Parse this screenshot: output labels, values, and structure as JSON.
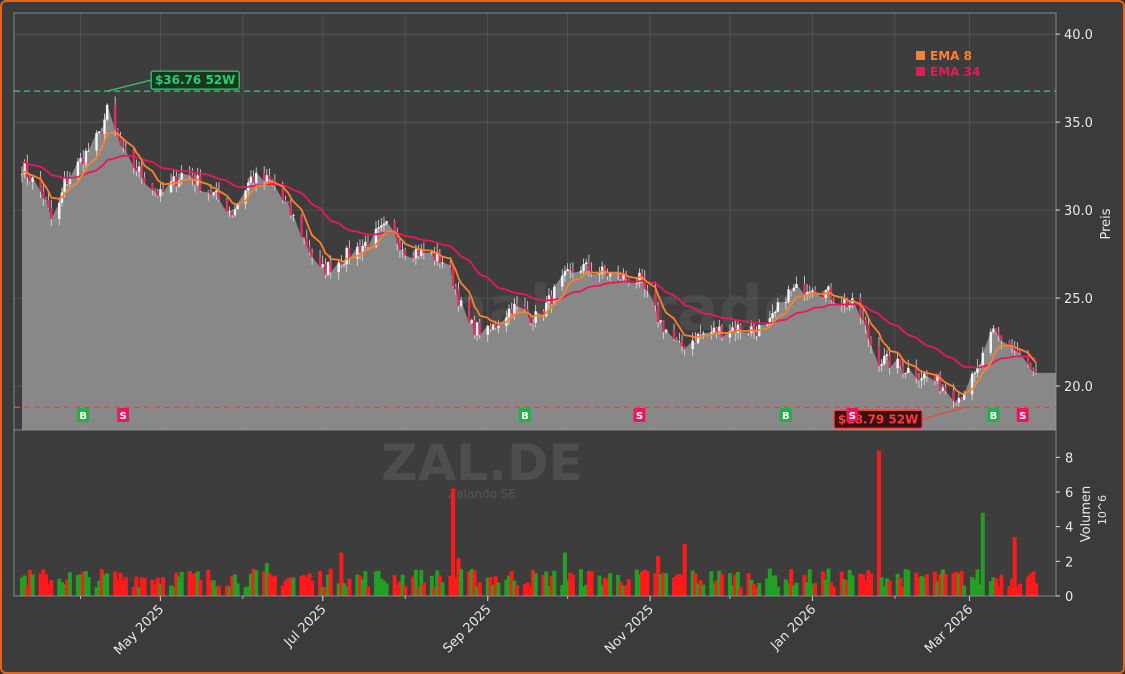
{
  "chart_data": [
    {
      "type": "candlestick",
      "ylabel": "Preis",
      "ylim": [
        17.5,
        41.2
      ],
      "yticks": [
        "20.0",
        "25.0",
        "30.0",
        "35.0",
        "40.0"
      ],
      "xticks": [
        "May 2025",
        "Jul 2025",
        "Sep 2025",
        "Nov 2025",
        "Jan 2026",
        "Mar 2026"
      ],
      "xlim": [
        "2025-03-10",
        "2026-03-26"
      ],
      "legend": [
        "EMA 8",
        "EMA 34"
      ],
      "legend_position": "top-right",
      "grid": true,
      "annotations": [
        {
          "label": "$36.76 52W",
          "value": 36.76,
          "date": "2025-04-11",
          "color": "#2ecc71"
        },
        {
          "label": "$18.79 52W",
          "value": 18.79,
          "date": "2026-02-27",
          "color": "#ff3b3b"
        }
      ],
      "signals": [
        {
          "date": "2025-04-02",
          "label": "B"
        },
        {
          "date": "2025-04-17",
          "label": "S"
        },
        {
          "date": "2025-09-15",
          "label": "B"
        },
        {
          "date": "2025-10-28",
          "label": "S"
        },
        {
          "date": "2025-12-22",
          "label": "B"
        },
        {
          "date": "2026-01-16",
          "label": "S"
        },
        {
          "date": "2026-03-10",
          "label": "B"
        },
        {
          "date": "2026-03-21",
          "label": "S"
        }
      ],
      "close_keypoints": [
        [
          "2025-03-10",
          32.5
        ],
        [
          "2025-03-18",
          30.8
        ],
        [
          "2025-03-22",
          29.0
        ],
        [
          "2025-03-26",
          31.5
        ],
        [
          "2025-04-02",
          33.0
        ],
        [
          "2025-04-08",
          34.2
        ],
        [
          "2025-04-11",
          35.6
        ],
        [
          "2025-04-17",
          33.2
        ],
        [
          "2025-04-24",
          32.0
        ],
        [
          "2025-05-01",
          30.8
        ],
        [
          "2025-05-10",
          32.2
        ],
        [
          "2025-05-20",
          31.0
        ],
        [
          "2025-05-28",
          29.9
        ],
        [
          "2025-06-04",
          31.8
        ],
        [
          "2025-06-12",
          31.6
        ],
        [
          "2025-06-22",
          29.0
        ],
        [
          "2025-06-30",
          26.5
        ],
        [
          "2025-07-08",
          27.2
        ],
        [
          "2025-07-16",
          28.0
        ],
        [
          "2025-07-25",
          29.0
        ],
        [
          "2025-08-01",
          27.8
        ],
        [
          "2025-08-10",
          27.5
        ],
        [
          "2025-08-17",
          27.0
        ],
        [
          "2025-08-24",
          23.5
        ],
        [
          "2025-09-01",
          23.0
        ],
        [
          "2025-09-10",
          24.5
        ],
        [
          "2025-09-20",
          23.8
        ],
        [
          "2025-09-28",
          25.8
        ],
        [
          "2025-10-05",
          26.8
        ],
        [
          "2025-10-15",
          26.4
        ],
        [
          "2025-10-28",
          26.0
        ],
        [
          "2025-11-05",
          23.6
        ],
        [
          "2025-11-12",
          22.2
        ],
        [
          "2025-11-20",
          22.9
        ],
        [
          "2025-12-01",
          23.3
        ],
        [
          "2025-12-15",
          23.2
        ],
        [
          "2025-12-22",
          25.2
        ],
        [
          "2026-01-01",
          25.8
        ],
        [
          "2026-01-10",
          25.0
        ],
        [
          "2026-01-18",
          24.4
        ],
        [
          "2026-01-25",
          21.6
        ],
        [
          "2026-02-05",
          21.0
        ],
        [
          "2026-02-15",
          20.4
        ],
        [
          "2026-02-25",
          19.4
        ],
        [
          "2026-03-03",
          20.5
        ],
        [
          "2026-03-10",
          23.0
        ],
        [
          "2026-03-16",
          22.4
        ],
        [
          "2026-03-22",
          21.3
        ],
        [
          "2026-03-26",
          20.4
        ]
      ]
    },
    {
      "type": "bar",
      "ylabel": "Volumen",
      "yunit": "10^6",
      "yticks": [
        "0",
        "2",
        "4",
        "6",
        "8"
      ],
      "ylim": [
        0,
        9
      ],
      "title": "ZAL.DE",
      "subtitle": "Zalando SE",
      "watermark": "forexsignale.trade",
      "peaks": [
        {
          "date": "2025-04-20",
          "value": 2.5
        },
        {
          "date": "2025-06-10",
          "value": 1.9
        },
        {
          "date": "2025-07-08",
          "value": 2.5
        },
        {
          "date": "2025-08-19",
          "value": 6.2
        },
        {
          "date": "2025-08-21",
          "value": 2.2
        },
        {
          "date": "2025-09-30",
          "value": 2.5
        },
        {
          "date": "2025-11-04",
          "value": 2.3
        },
        {
          "date": "2025-11-14",
          "value": 3.0
        },
        {
          "date": "2026-01-26",
          "value": 8.4
        },
        {
          "date": "2026-03-06",
          "value": 4.8
        },
        {
          "date": "2026-03-18",
          "value": 3.4
        }
      ],
      "up_color": "#22a022",
      "down_color": "#ff1a1a"
    }
  ],
  "colors": {
    "price_area": "#8c8c8c",
    "ema8": "#ff7f2a",
    "ema34": "#e8195a",
    "high_line": "#2ecc71",
    "low_line": "#ff3b3b",
    "frame": "#e8641b"
  }
}
